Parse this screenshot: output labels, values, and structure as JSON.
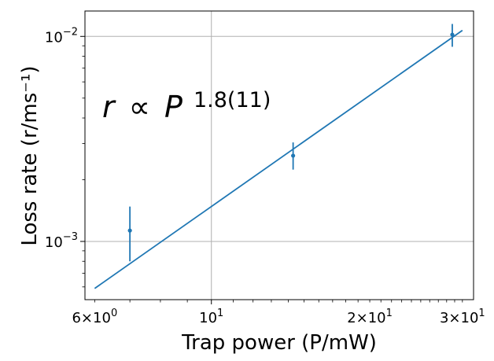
{
  "chart_data": {
    "type": "scatter",
    "xscale": "log",
    "yscale": "log",
    "xlabel": "Trap power (P/mW)",
    "ylabel": "Loss rate (r/ms⁻¹)",
    "xlim": [
      5.75,
      31.5
    ],
    "ylim": [
      0.00052,
      0.0133
    ],
    "grid": true,
    "x_ticks": [
      {
        "value": 6,
        "mantissa": "6",
        "exponent": "0"
      },
      {
        "value": 10,
        "mantissa": "",
        "exponent": "1"
      },
      {
        "value": 20,
        "mantissa": "2",
        "exponent": "1"
      },
      {
        "value": 30,
        "mantissa": "3",
        "exponent": "1"
      }
    ],
    "y_ticks": [
      {
        "value": 0.001,
        "exponent": "−3"
      },
      {
        "value": 0.01,
        "exponent": "−2"
      }
    ],
    "series": [
      {
        "kind": "errorbar",
        "color": "#1f77b4",
        "x": [
          7.0,
          14.3,
          28.7
        ],
        "y": [
          0.00113,
          0.00262,
          0.0102
        ],
        "yerr_low": [
          0.00033,
          0.00038,
          0.0013
        ],
        "yerr_high": [
          0.00035,
          0.00042,
          0.0013
        ]
      },
      {
        "kind": "fit",
        "color": "#1f77b4",
        "x": [
          6.0,
          30.0
        ],
        "y": [
          0.00059,
          0.0107
        ]
      }
    ],
    "annotation": {
      "symbol": "r",
      "relation": "∝",
      "variable": "P",
      "exponent": "1.8(11)"
    }
  }
}
